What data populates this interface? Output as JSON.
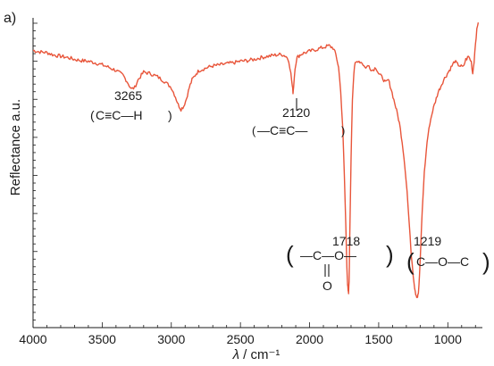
{
  "chart_data": {
    "type": "line",
    "panel_label": "a)",
    "xlabel_symbol": "λ",
    "xlabel_unit": " / cm⁻¹",
    "ylabel": "Reflectance a.u.",
    "xlim": [
      4000,
      750
    ],
    "ylim": [
      0,
      1
    ],
    "x_reversed": true,
    "x_ticks": [
      4000,
      3500,
      3000,
      2500,
      2000,
      1500,
      1000
    ],
    "grid": false,
    "line_color": "#e8553a",
    "series": [
      {
        "x": [
          4000,
          3950,
          3900,
          3850,
          3800,
          3750,
          3700,
          3650,
          3600,
          3550,
          3500,
          3450,
          3400,
          3350,
          3320,
          3290,
          3265,
          3240,
          3200,
          3150,
          3100,
          3050,
          3000,
          2970,
          2950,
          2930,
          2910,
          2890,
          2870,
          2850,
          2820,
          2800,
          2750,
          2700,
          2650,
          2600,
          2550,
          2500,
          2450,
          2400,
          2350,
          2300,
          2250,
          2200,
          2170,
          2150,
          2135,
          2125,
          2120,
          2115,
          2105,
          2090,
          2070,
          2050,
          2000,
          1950,
          1900,
          1860,
          1830,
          1810,
          1790,
          1775,
          1760,
          1748,
          1738,
          1730,
          1725,
          1721,
          1718,
          1714,
          1710,
          1700,
          1690,
          1680,
          1670,
          1650,
          1620,
          1600,
          1570,
          1550,
          1520,
          1500,
          1470,
          1450,
          1430,
          1410,
          1390,
          1370,
          1350,
          1330,
          1310,
          1295,
          1280,
          1265,
          1250,
          1240,
          1232,
          1225,
          1219,
          1213,
          1205,
          1195,
          1185,
          1170,
          1150,
          1130,
          1110,
          1090,
          1070,
          1050,
          1030,
          1010,
          990,
          970,
          950,
          930,
          910,
          890,
          870,
          850,
          830,
          820,
          810,
          800,
          790,
          780
        ],
        "y": [
          0.895,
          0.89,
          0.888,
          0.88,
          0.876,
          0.872,
          0.866,
          0.862,
          0.86,
          0.855,
          0.848,
          0.84,
          0.83,
          0.815,
          0.795,
          0.77,
          0.775,
          0.8,
          0.825,
          0.82,
          0.81,
          0.795,
          0.775,
          0.745,
          0.72,
          0.705,
          0.715,
          0.74,
          0.775,
          0.8,
          0.82,
          0.83,
          0.838,
          0.845,
          0.848,
          0.852,
          0.855,
          0.86,
          0.862,
          0.866,
          0.872,
          0.876,
          0.88,
          0.882,
          0.876,
          0.862,
          0.82,
          0.78,
          0.76,
          0.78,
          0.84,
          0.872,
          0.88,
          0.885,
          0.892,
          0.898,
          0.905,
          0.91,
          0.903,
          0.882,
          0.84,
          0.765,
          0.64,
          0.49,
          0.33,
          0.2,
          0.14,
          0.115,
          0.11,
          0.15,
          0.27,
          0.55,
          0.74,
          0.82,
          0.852,
          0.862,
          0.855,
          0.84,
          0.845,
          0.83,
          0.84,
          0.82,
          0.805,
          0.79,
          0.8,
          0.77,
          0.735,
          0.7,
          0.66,
          0.6,
          0.52,
          0.44,
          0.34,
          0.24,
          0.17,
          0.13,
          0.11,
          0.102,
          0.1,
          0.11,
          0.165,
          0.27,
          0.38,
          0.5,
          0.6,
          0.66,
          0.7,
          0.73,
          0.76,
          0.78,
          0.8,
          0.815,
          0.83,
          0.845,
          0.86,
          0.85,
          0.845,
          0.84,
          0.865,
          0.875,
          0.858,
          0.82,
          0.86,
          0.92,
          0.96,
          0.985
        ]
      }
    ],
    "annotations": [
      {
        "wavenumber": "3265",
        "group": "C≡C—H",
        "open": "(",
        "close": ")"
      },
      {
        "wavenumber": "2120",
        "group": "—C≡C—",
        "open": "(",
        "close": ")"
      },
      {
        "wavenumber": "1718",
        "group": "—C—O—",
        "sub": "O",
        "open": "(",
        "close": ")"
      },
      {
        "wavenumber": "1219",
        "group": "C—O—C",
        "open": "(",
        "close": ")"
      }
    ]
  }
}
